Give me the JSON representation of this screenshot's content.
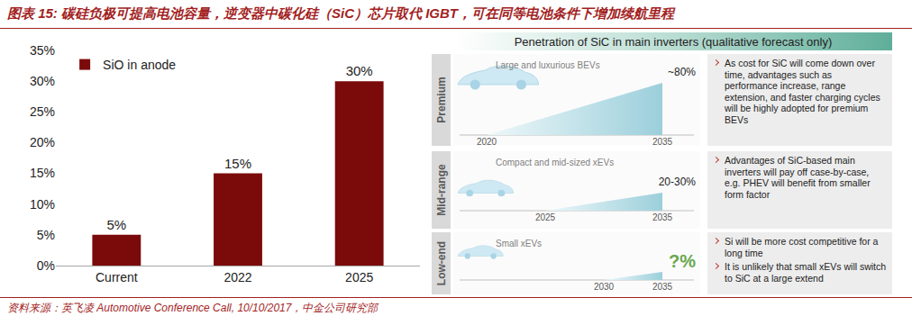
{
  "header": {
    "title": "图表 15: 碳硅负极可提高电池容量，逆变器中碳化硅（SiC）芯片取代 IGBT，可在同等电池条件下增加续航里程"
  },
  "chart_data": {
    "type": "bar",
    "categories": [
      "Current",
      "2022",
      "2025"
    ],
    "series": [
      {
        "name": "SiO in anode",
        "color": "#7b0a0a",
        "values": [
          5,
          15,
          30
        ],
        "value_labels": [
          "5%",
          "15%",
          "30%"
        ]
      }
    ],
    "ylim": [
      0,
      35
    ],
    "yticks": [
      {
        "value": 0,
        "label": "0%"
      },
      {
        "value": 5,
        "label": "5%"
      },
      {
        "value": 10,
        "label": "10%"
      },
      {
        "value": 15,
        "label": "15%"
      },
      {
        "value": 20,
        "label": "20%"
      },
      {
        "value": 25,
        "label": "25%"
      },
      {
        "value": 30,
        "label": "30%"
      },
      {
        "value": 35,
        "label": "35%"
      }
    ],
    "grid": false,
    "legend": "top left",
    "data_labels": true
  },
  "diagram": {
    "title": "Penetration of SiC in main inverters (qualitative forecast only)",
    "rows": [
      {
        "segment": "Premium",
        "label": "Large and luxurious BEVs",
        "start": 2020,
        "end": 2035,
        "value": "~80%",
        "value_color": "#222222",
        "notes": [
          "As cost for SiC will come down over time, advantages such as performance increase, range extension, and faster charging cycles will be highly adopted for premium BEVs"
        ]
      },
      {
        "segment": "Mid-range",
        "label": "Compact and mid-sized xEVs",
        "start": 2025,
        "end": 2035,
        "value": "20-30%",
        "value_color": "#222222",
        "notes": [
          "Advantages of SiC-based main inverters will pay off case-by-case, e.g. PHEV will benefit from smaller form factor"
        ]
      },
      {
        "segment": "Low-end",
        "label": "Small xEVs",
        "start": 2030,
        "end": 2035,
        "value": "?%",
        "value_color": "#6aa84f",
        "notes": [
          "Si will be more cost competitive for a long time",
          "It is unlikely that small xEVs will switch to SiC at a large extend"
        ]
      }
    ]
  },
  "footer": {
    "source": "资料来源：英飞凌 Automotive Conference Call, 10/10/2017，中金公司研究部"
  }
}
